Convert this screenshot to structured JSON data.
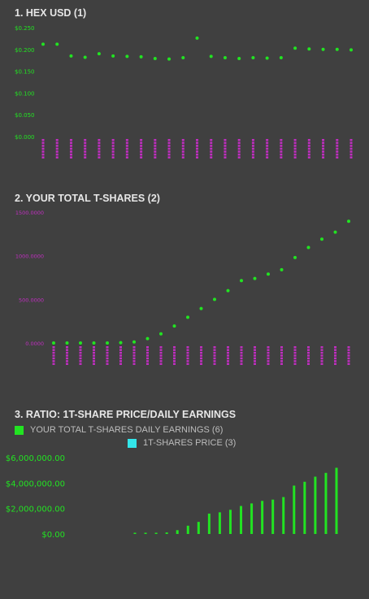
{
  "colors": {
    "background": "#404040",
    "green": "#22e322",
    "magenta": "#c02ec0",
    "cyan": "#33e6ea",
    "title": "#e6e6e6",
    "legend_text": "#bdbdbd"
  },
  "panels": {
    "p1": {
      "title": "1. HEX USD (1)"
    },
    "p2": {
      "title": "2. YOUR TOTAL T-SHARES (2)"
    },
    "p3": {
      "title": "3. RATIO: 1T-SHARE PRICE/DAILY EARNINGS",
      "legend": [
        {
          "label": "YOUR TOTAL T-SHARES DAILY EARNINGS (6)",
          "color": "#22e322"
        },
        {
          "label": "1T-SHARES PRICE (3)",
          "color": "#33e6ea"
        }
      ]
    }
  },
  "chart_data": [
    {
      "type": "scatter",
      "title": "1. HEX USD (1)",
      "ylim": [
        0,
        0.25
      ],
      "yticks": [
        "$0.250",
        "$0.200",
        "$0.150",
        "$0.100",
        "$0.050",
        "$0.000"
      ],
      "y": [
        0.212,
        0.212,
        0.185,
        0.182,
        0.19,
        0.185,
        0.184,
        0.183,
        0.179,
        0.178,
        0.181,
        0.226,
        0.184,
        0.181,
        0.179,
        0.181,
        0.18,
        0.181,
        0.203,
        0.201,
        0.2,
        0.2,
        0.199
      ],
      "grid": false,
      "legend": "none"
    },
    {
      "type": "scatter",
      "title": "2. YOUR TOTAL T-SHARES (2)",
      "ylim": [
        0,
        1500
      ],
      "yticks": [
        "1500.0000",
        "1000.0000",
        "500.0000",
        "0.0000"
      ],
      "y": [
        0,
        0,
        0,
        0,
        0,
        3,
        12,
        50,
        105,
        195,
        295,
        395,
        500,
        600,
        715,
        740,
        790,
        840,
        980,
        1095,
        1190,
        1270,
        1395
      ],
      "grid": false,
      "legend": "none"
    },
    {
      "type": "bar",
      "title": "3. RATIO: 1T-SHARE PRICE/DAILY EARNINGS",
      "ylim": [
        0,
        6000000
      ],
      "yticks": [
        "$6,000,000.00",
        "$4,000,000.00",
        "$2,000,000.00",
        "$0.00"
      ],
      "series": [
        {
          "name": "YOUR TOTAL T-SHARES DAILY EARNINGS (6)",
          "values": [
            0,
            20000,
            60000,
            120000,
            300000,
            650000,
            950000,
            1600000,
            1700000,
            1900000,
            2200000,
            2400000,
            2600000,
            2700000,
            2900000,
            3800000,
            4100000,
            4500000,
            4800000,
            5200000
          ]
        },
        {
          "name": "1T-SHARES PRICE (3)",
          "values": []
        }
      ],
      "legend": "top-left",
      "grid": false
    }
  ]
}
